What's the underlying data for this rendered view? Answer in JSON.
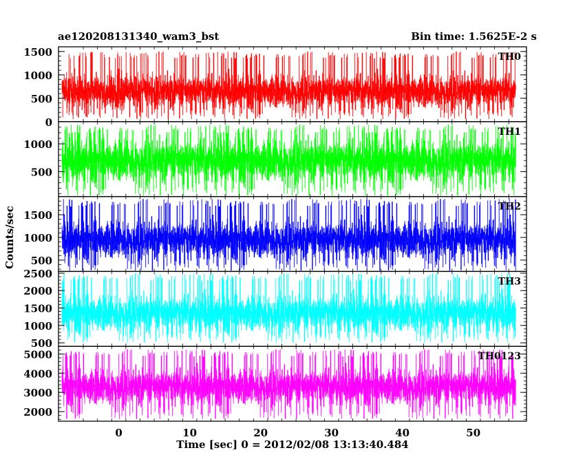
{
  "header": {
    "title": "ae120208131340_wam3_bst",
    "bin_time": "Bin time: 1.5625E-2 s"
  },
  "chart_data": {
    "type": "line",
    "title": "ae120208131340_wam3_bst",
    "subtitle": "Bin time: 1.5625E-2 s",
    "xlabel": "Time [sec] 0 = 2012/02/08 13:13:40.484",
    "ylabel": "Counts/sec",
    "xlim": [
      -8.5,
      57.5
    ],
    "x_range": [
      -8,
      56
    ],
    "x_ticks": [
      0,
      10,
      20,
      30,
      40,
      50
    ],
    "grid": false,
    "panels": [
      {
        "name": "TH0",
        "color": "#ff0000",
        "ylim": [
          0,
          1600
        ],
        "y_ticks": [
          0,
          500,
          1000,
          1500
        ],
        "mean": 650,
        "typical_range": [
          150,
          1150
        ],
        "extremes": [
          50,
          1500
        ]
      },
      {
        "name": "TH1",
        "color": "#00ff00",
        "ylim": [
          50,
          1400
        ],
        "y_ticks": [
          500,
          1000
        ],
        "mean": 700,
        "typical_range": [
          150,
          1200
        ],
        "extremes": [
          60,
          1350
        ]
      },
      {
        "name": "TH2",
        "color": "#0000ff",
        "ylim": [
          250,
          1900
        ],
        "y_ticks": [
          500,
          1000,
          1500
        ],
        "mean": 950,
        "typical_range": [
          400,
          1550
        ],
        "extremes": [
          260,
          1850
        ]
      },
      {
        "name": "TH3",
        "color": "#00ffff",
        "ylim": [
          400,
          2550
        ],
        "y_ticks": [
          500,
          1000,
          1500,
          2000,
          2500
        ],
        "mean": 1350,
        "typical_range": [
          650,
          2100
        ],
        "extremes": [
          500,
          2500
        ]
      },
      {
        "name": "TH0123",
        "color": "#ff00ff",
        "ylim": [
          1500,
          5400
        ],
        "y_ticks": [
          2000,
          3000,
          4000,
          5000
        ],
        "mean": 3300,
        "typical_range": [
          2100,
          4700
        ],
        "extremes": [
          1600,
          5250
        ]
      }
    ]
  }
}
